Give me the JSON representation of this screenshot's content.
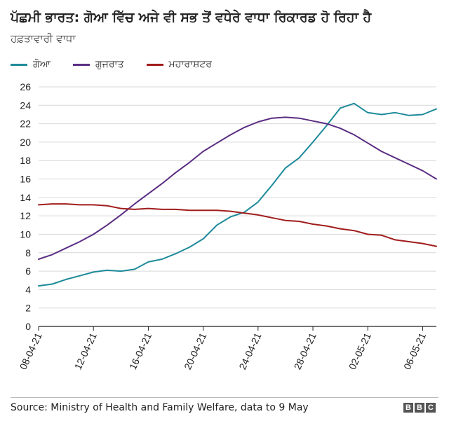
{
  "header": {
    "title": "ਪੱਛਮੀ ਭਾਰਤ: ਗੋਆ ਵਿੱਚ ਅਜੇ ਵੀ ਸਭ ਤੋਂ ਵਧੇਰੇ ਵਾਧਾ ਰਿਕਾਰਡ ਹੋ ਰਿਹਾ ਹੈ",
    "subtitle": "ਹਫ਼ਤਾਵਾਰੀ ਵਾਧਾ"
  },
  "footer": {
    "source": "Source: Ministry of Health and Family Welfare, data to 9 May",
    "logo_letters": [
      "B",
      "B",
      "C"
    ]
  },
  "colors": {
    "goa": "#1d8a9a",
    "gujarat": "#5a2d82",
    "maharashtra": "#a11c1c",
    "grid": "#d9d9d9",
    "axis": "#222222"
  },
  "chart_data": {
    "type": "line",
    "title": "ਪੱਛਮੀ ਭਾਰਤ: ਗੋਆ ਵਿੱਚ ਅਜੇ ਵੀ ਸਭ ਤੋਂ ਵਧੇਰੇ ਵਾਧਾ ਰਿਕਾਰਡ ਹੋ ਰਿਹਾ ਹੈ",
    "ylabel": "ਹਫ਼ਤਾਵਾਰੀ ਵਾਧਾ",
    "ylim": [
      0,
      26
    ],
    "yticks": [
      0,
      2,
      4,
      6,
      8,
      10,
      12,
      14,
      16,
      18,
      20,
      22,
      24,
      26
    ],
    "x": [
      "08-04-21",
      "09-04-21",
      "10-04-21",
      "11-04-21",
      "12-04-21",
      "13-04-21",
      "14-04-21",
      "15-04-21",
      "16-04-21",
      "17-04-21",
      "18-04-21",
      "19-04-21",
      "20-04-21",
      "21-04-21",
      "22-04-21",
      "23-04-21",
      "24-04-21",
      "25-04-21",
      "26-04-21",
      "27-04-21",
      "28-04-21",
      "29-04-21",
      "30-04-21",
      "01-05-21",
      "02-05-21",
      "03-05-21",
      "04-05-21",
      "05-05-21",
      "06-05-21",
      "07-05-21"
    ],
    "xtick_labels": [
      "08-04-21",
      "12-04-21",
      "16-04-21",
      "20-04-21",
      "24-04-21",
      "28-04-21",
      "02-05-21",
      "06-05-21"
    ],
    "xtick_indices": [
      0,
      4,
      8,
      12,
      16,
      20,
      24,
      28
    ],
    "series": [
      {
        "name": "ਗੋਆ",
        "key": "goa",
        "values": [
          4.4,
          4.6,
          5.1,
          5.5,
          5.9,
          6.1,
          6.0,
          6.2,
          7.0,
          7.3,
          7.9,
          8.6,
          9.5,
          11.0,
          11.9,
          12.4,
          13.5,
          15.3,
          17.2,
          18.3,
          20.0,
          21.8,
          23.7,
          24.2,
          23.2,
          23.0,
          23.2,
          22.9,
          23.0,
          23.6
        ]
      },
      {
        "name": "ਗੁਜਰਾਤ",
        "key": "gujarat",
        "values": [
          7.3,
          7.8,
          8.5,
          9.2,
          10.0,
          11.0,
          12.1,
          13.3,
          14.4,
          15.5,
          16.7,
          17.8,
          19.0,
          19.9,
          20.8,
          21.6,
          22.2,
          22.6,
          22.7,
          22.6,
          22.3,
          22.0,
          21.5,
          20.8,
          19.9,
          19.0,
          18.3,
          17.6,
          16.9,
          16.0
        ]
      },
      {
        "name": "ਮਹਾਰਾਸ਼ਟਰ",
        "key": "maharashtra",
        "values": [
          13.2,
          13.3,
          13.3,
          13.2,
          13.2,
          13.1,
          12.8,
          12.7,
          12.8,
          12.7,
          12.7,
          12.6,
          12.6,
          12.6,
          12.5,
          12.3,
          12.1,
          11.8,
          11.5,
          11.4,
          11.1,
          10.9,
          10.6,
          10.4,
          10.0,
          9.9,
          9.4,
          9.2,
          9.0,
          8.7
        ]
      }
    ]
  }
}
